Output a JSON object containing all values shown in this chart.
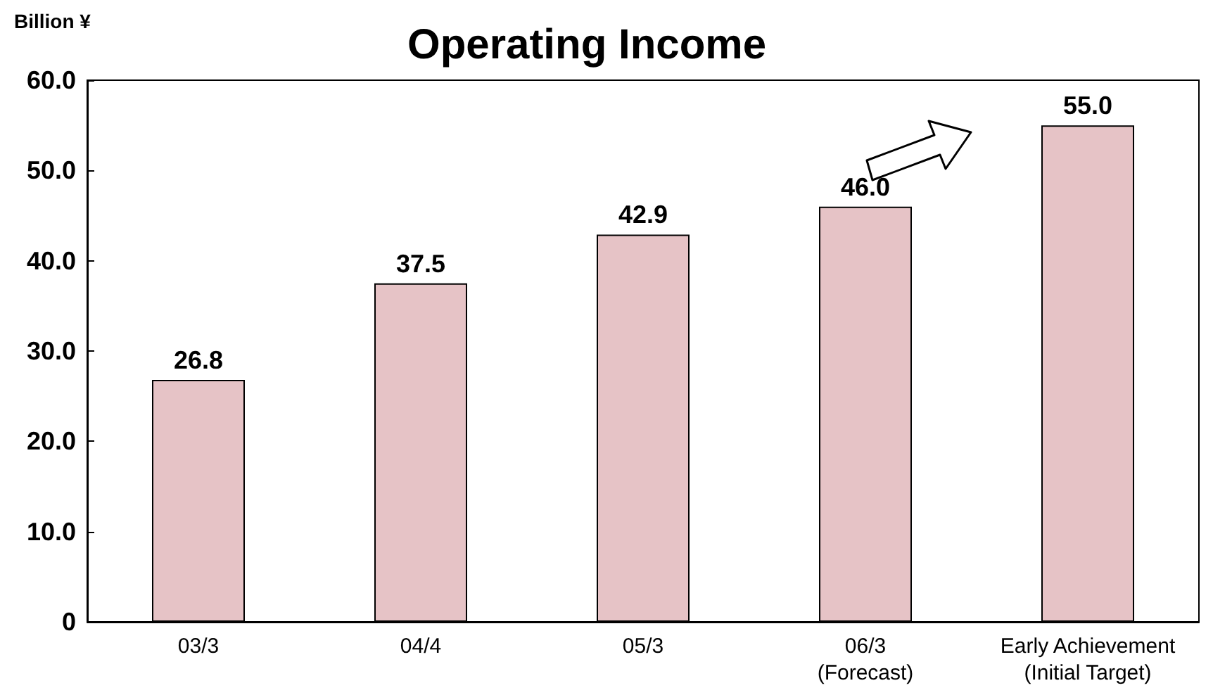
{
  "chart_data": {
    "type": "bar",
    "title": "Operating Income",
    "ylabel": "Billion ¥",
    "categories": [
      "03/3",
      "04/4",
      "05/3",
      "06/3\n(Forecast)",
      "Early Achievement\n(Initial Target)"
    ],
    "values": [
      26.8,
      37.5,
      42.9,
      46.0,
      55.0
    ],
    "color": "#e6c3c6",
    "ylim": [
      0,
      60
    ],
    "yticks": [
      0,
      {
        "value": 10,
        "label": "10.0"
      },
      {
        "value": 20,
        "label": "20.0"
      },
      {
        "value": 30,
        "label": "30.0"
      },
      {
        "value": 40,
        "label": "40.0"
      },
      {
        "value": 50,
        "label": "50.0"
      },
      {
        "value": 60,
        "label": "60.0"
      }
    ],
    "value_labels": [
      "26.8",
      "37.5",
      "42.9",
      "46.0",
      "55.0"
    ],
    "grid": false
  }
}
